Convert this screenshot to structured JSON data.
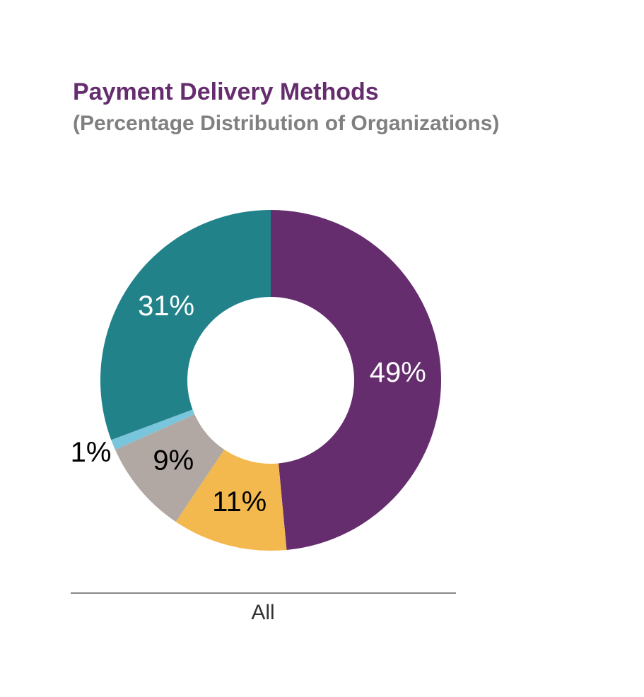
{
  "chart_data": {
    "type": "donut",
    "title": "Payment Delivery Methods",
    "subtitle": "(Percentage Distribution of Organizations)",
    "values": [
      49,
      11,
      9,
      1,
      31
    ],
    "value_labels": [
      "49%",
      "11%",
      "9%",
      "1%",
      "31%"
    ],
    "colors": [
      "#652d6e",
      "#f3b94e",
      "#b1a8a3",
      "#78c5dc",
      "#22828a"
    ],
    "label_colors": [
      "#ffffff",
      "#000000",
      "#000000",
      "#000000",
      "#ffffff"
    ],
    "x_label": "All"
  }
}
